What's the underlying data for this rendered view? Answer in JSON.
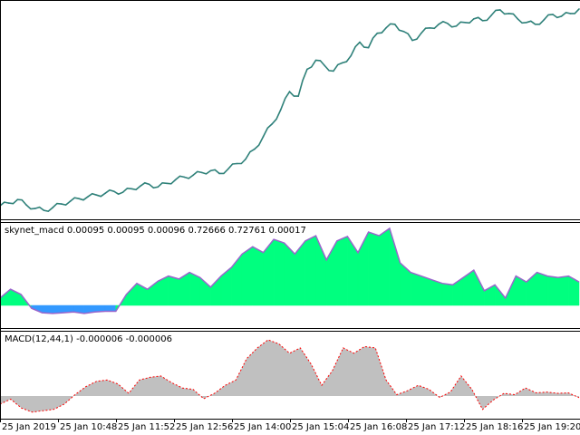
{
  "window": {
    "background": "#ffffff",
    "border_color": "#000000"
  },
  "main_chart": {
    "line_color": "#2f7f7f",
    "highlight_color": "#2e8b57"
  },
  "skynet_panel": {
    "label": "skynet_macd 0.00095 0.00095 0.00096 0.72666 0.72761 0.00017",
    "positive_color": "#00ff7f",
    "negative_color": "#3399ff",
    "outline_color": "#9966cc"
  },
  "macd_panel": {
    "label": "MACD(12,44,1) -0.000006 -0.000006",
    "fill_color": "#c0c0c0",
    "signal_color": "#ff0000"
  },
  "time_axis": {
    "labels": [
      "25 Jan 2019",
      "25 Jan 10:48",
      "25 Jan 11:52",
      "25 Jan 12:56",
      "25 Jan 14:00",
      "25 Jan 15:04",
      "25 Jan 16:08",
      "25 Jan 17:12",
      "25 Jan 18:16",
      "25 Jan 19:20"
    ]
  },
  "chart_data": [
    {
      "type": "line",
      "title": "",
      "series": [
        {
          "values": [
            0.7218,
            0.7221,
            0.7225,
            0.7219,
            0.7215,
            0.7213,
            0.7216,
            0.722,
            0.7223,
            0.7226,
            0.7228,
            0.723,
            0.7232,
            0.7234,
            0.7233,
            0.7237,
            0.724,
            0.7242,
            0.7239,
            0.7243,
            0.7247,
            0.725,
            0.7252,
            0.7255,
            0.7257,
            0.7254,
            0.7259,
            0.7265,
            0.727,
            0.7281,
            0.7295,
            0.7309,
            0.7325,
            0.7345,
            0.734,
            0.737,
            0.738,
            0.7374,
            0.7368,
            0.7377,
            0.7385,
            0.74,
            0.7394,
            0.741,
            0.7416,
            0.742,
            0.7412,
            0.7402,
            0.741,
            0.7416,
            0.742,
            0.7421,
            0.7418,
            0.7422,
            0.7426,
            0.7424,
            0.743,
            0.7436,
            0.7432,
            0.7426,
            0.7422,
            0.742,
            0.7425,
            0.7431,
            0.7429,
            0.7432,
            0.7437
          ]
        }
      ]
    },
    {
      "type": "area",
      "title": "skynet_macd",
      "series": [
        {
          "values": [
            0.0001,
            0.00022,
            0.00015,
            -4e-05,
            -0.0001,
            -0.00011,
            -0.0001,
            -9e-05,
            -0.00011,
            -9e-05,
            -8e-05,
            -8e-05,
            0.00015,
            0.0003,
            0.00022,
            0.00033,
            0.0004,
            0.00036,
            0.00045,
            0.00038,
            0.00025,
            0.0004,
            0.00052,
            0.0007,
            0.0008,
            0.00072,
            0.0009,
            0.00085,
            0.0007,
            0.00088,
            0.00095,
            0.00062,
            0.00088,
            0.00094,
            0.00072,
            0.001,
            0.00095,
            0.00105,
            0.00058,
            0.00045,
            0.0004,
            0.00035,
            0.0003,
            0.00028,
            0.00038,
            0.00048,
            0.0002,
            0.00028,
            0.0001,
            0.0004,
            0.00032,
            0.00045,
            0.0004,
            0.00038,
            0.0004,
            0.00032
          ]
        }
      ]
    },
    {
      "type": "area",
      "title": "MACD(12,44,1)",
      "series": [
        {
          "values": [
            -3e-05,
            -1.2e-05,
            -4.5e-05,
            -6e-05,
            -5.5e-05,
            -5e-05,
            -3e-05,
            5e-06,
            3.5e-05,
            5.5e-05,
            6e-05,
            4.5e-05,
            1e-05,
            6e-05,
            7e-05,
            7.5e-05,
            5e-05,
            3e-05,
            2.5e-05,
            -1e-05,
            1e-05,
            4e-05,
            6e-05,
            0.00014,
            0.00018,
            0.00021,
            0.000195,
            0.00016,
            0.00018,
            0.00012,
            4e-05,
            9.5e-05,
            0.00018,
            0.00016,
            0.000185,
            0.00018,
            6e-05,
            5e-06,
            2e-05,
            4e-05,
            2.5e-05,
            -5e-06,
            1.5e-05,
            7.5e-05,
            2.5e-05,
            -5e-05,
            -1.5e-05,
            1e-05,
            5e-06,
            3e-05,
            1.2e-05,
            1.5e-05,
            1e-05,
            1.2e-05,
            -6e-06
          ]
        }
      ]
    }
  ]
}
